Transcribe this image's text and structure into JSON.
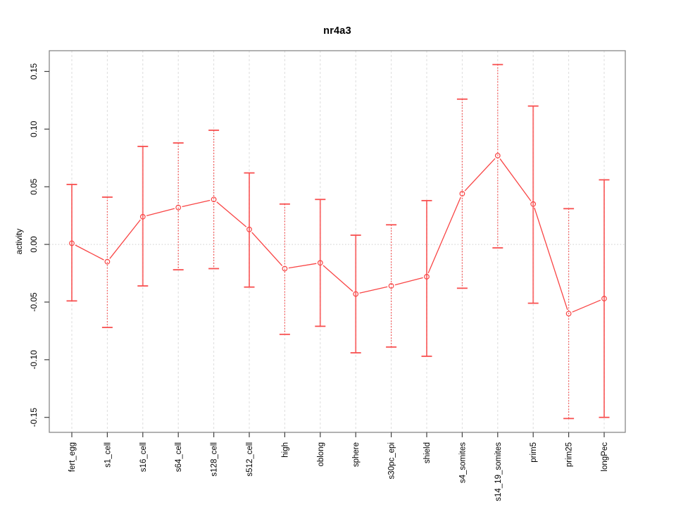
{
  "figure": {
    "background": "#ffffff"
  },
  "chart_data": {
    "type": "line",
    "title": "nr4a3",
    "xlabel": "",
    "ylabel": "activity",
    "categories": [
      "fert_egg",
      "s1_cell",
      "s16_cell",
      "s64_cell",
      "s128_cell",
      "s512_cell",
      "high",
      "oblong",
      "sphere",
      "s30pc_epi",
      "shield",
      "s4_somites",
      "s14_19_somites",
      "prim5",
      "prim25",
      "longPec"
    ],
    "series": [
      {
        "name": "nr4a3 activity",
        "point_style": "open-circle",
        "values": [
          0.001,
          -0.015,
          0.024,
          0.032,
          0.039,
          0.013,
          -0.021,
          -0.016,
          -0.043,
          -0.036,
          -0.028,
          0.044,
          0.077,
          0.035,
          -0.06,
          -0.047
        ]
      }
    ],
    "error_bars": {
      "upper": [
        0.052,
        0.041,
        0.085,
        0.088,
        0.099,
        0.062,
        0.035,
        0.039,
        0.008,
        0.017,
        0.038,
        0.126,
        0.156,
        0.12,
        0.031,
        0.056
      ],
      "lower": [
        -0.049,
        -0.072,
        -0.036,
        -0.022,
        -0.021,
        -0.037,
        -0.078,
        -0.071,
        -0.094,
        -0.089,
        -0.097,
        -0.038,
        -0.003,
        -0.051,
        -0.151,
        -0.15
      ],
      "line_styles": [
        "solid",
        "dotted",
        "solid",
        "dotted",
        "dotted",
        "solid",
        "dotted",
        "solid",
        "solid",
        "dotted",
        "solid",
        "dotted",
        "dotted",
        "solid",
        "dotted",
        "solid"
      ]
    },
    "yticks": [
      -0.15,
      -0.1,
      -0.05,
      0,
      0.05,
      0.1,
      0.15
    ],
    "ytick_labels": [
      "-0.15",
      "-0.10",
      "-0.05",
      "0.00",
      "0.05",
      "0.10",
      "0.15"
    ],
    "ylim": [
      -0.163,
      0.168
    ],
    "grid": {
      "vertical_at_categories": true,
      "horizontal_at_zero": true,
      "style": "dotted"
    },
    "legend": "none",
    "colors": {
      "series": "#f94545",
      "error_bar_solid": "#fa6060",
      "error_bar_dotted": "#f64545",
      "error_bar_cap": "#f85050",
      "grid": "#dcdcdc",
      "zero_line": "#cfcfcf",
      "box": "#7f7f7f",
      "tick": "#404040",
      "text": "#000000"
    }
  }
}
